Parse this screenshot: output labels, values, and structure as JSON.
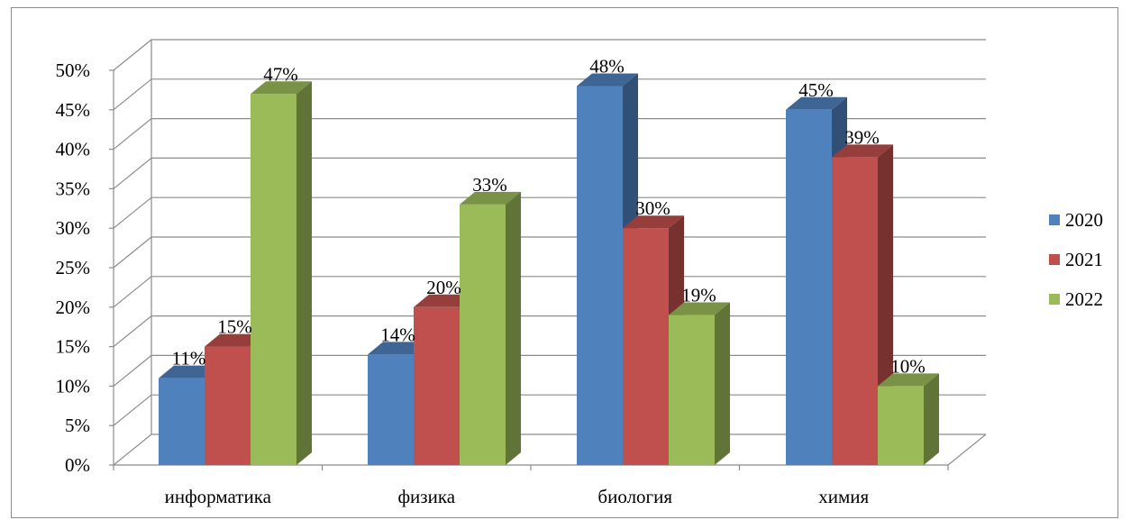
{
  "chart_data": {
    "type": "bar",
    "categories": [
      "информатика",
      "физика",
      "биология",
      "химия"
    ],
    "series": [
      {
        "name": "2020",
        "values": [
          11,
          14,
          48,
          45
        ],
        "color": "#4f81bd"
      },
      {
        "name": "2021",
        "values": [
          15,
          20,
          30,
          39
        ],
        "color": "#c0504d"
      },
      {
        "name": "2022",
        "values": [
          47,
          33,
          19,
          10
        ],
        "color": "#9bbb59"
      }
    ],
    "data_labels": [
      [
        "11%",
        "14%",
        "48%",
        "45%"
      ],
      [
        "15%",
        "20%",
        "30%",
        "39%"
      ],
      [
        "47%",
        "33%",
        "19%",
        "10%"
      ]
    ],
    "y_ticks": [
      "0%",
      "5%",
      "10%",
      "15%",
      "20%",
      "25%",
      "30%",
      "35%",
      "40%",
      "45%",
      "50%"
    ],
    "ylim": [
      0,
      50
    ],
    "ystep": 5,
    "grid": true,
    "legend_position": "right",
    "style": "3d-clustered-column",
    "title": "",
    "xlabel": "",
    "ylabel": ""
  }
}
